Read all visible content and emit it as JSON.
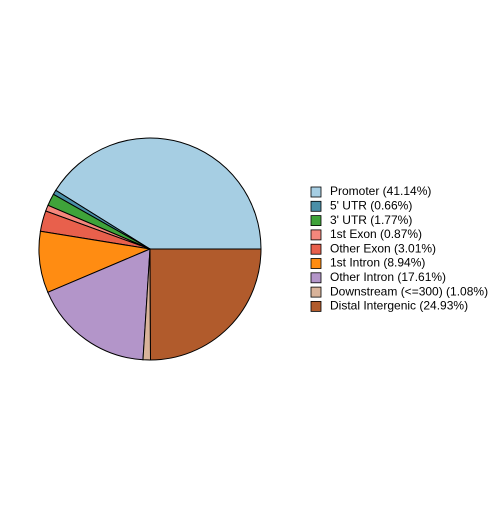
{
  "chart_data": {
    "type": "pie",
    "categories": [
      "Promoter (41.14%)",
      "5' UTR (0.66%)",
      "3' UTR (1.77%)",
      "1st Exon (0.87%)",
      "Other Exon (3.01%)",
      "1st Intron (8.94%)",
      "Other Intron (17.61%)",
      "Downstream (<=300) (1.08%)",
      "Distal Intergenic (24.93%)"
    ],
    "values": [
      41.14,
      0.66,
      1.77,
      0.87,
      3.01,
      8.94,
      17.61,
      1.08,
      24.93
    ],
    "colors": [
      "#a6cee3",
      "#4a8fa8",
      "#3fa33a",
      "#f4877c",
      "#e8604c",
      "#ff8c12",
      "#b395c9",
      "#d9b39a",
      "#b15b2c"
    ],
    "direction": "counterclockwise"
  }
}
